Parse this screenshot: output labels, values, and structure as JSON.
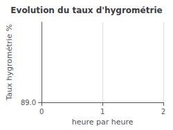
{
  "chart_data": {
    "type": "line",
    "title": "Evolution du taux d'hygrométrie",
    "xlabel": "heure par heure",
    "ylabel": "Taux hygrométrie %",
    "x": [],
    "values": [],
    "xlim": [
      0,
      2
    ],
    "xticks": [
      0,
      1,
      2
    ],
    "ylim": [
      89.0,
      90.0
    ],
    "yticks": [
      {
        "value": 89.0,
        "label": "89.0"
      }
    ],
    "grid": true
  }
}
